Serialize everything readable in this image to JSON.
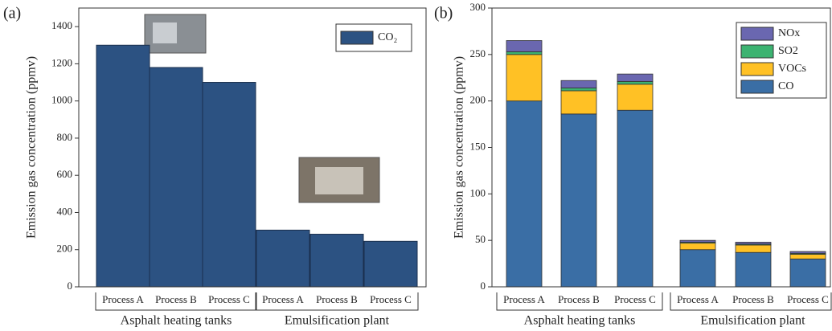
{
  "chart_data": [
    {
      "type": "bar",
      "panel_label": "(a)",
      "ylabel": "Emission gas concentration (ppmv)",
      "categories": [
        "Process A",
        "Process B",
        "Process C",
        "Process A",
        "Process B",
        "Process C"
      ],
      "groups": [
        "Asphalt heating tanks",
        "Emulsification plant"
      ],
      "series": [
        {
          "name": "CO₂",
          "color": "#2c5282",
          "values": [
            1300,
            1180,
            1100,
            305,
            283,
            245
          ]
        }
      ],
      "ylim": [
        0,
        1500
      ],
      "yticks": [
        0,
        200,
        400,
        600,
        800,
        1000,
        1200,
        1400
      ],
      "legend": "upper right"
    },
    {
      "type": "stacked_bar",
      "panel_label": "(b)",
      "ylabel": "Emission gas concentration (ppmv)",
      "categories": [
        "Process A",
        "Process B",
        "Process C",
        "Process A",
        "Process B",
        "Process C"
      ],
      "groups": [
        "Asphalt heating tanks",
        "Emulsification plant"
      ],
      "series": [
        {
          "name": "CO",
          "color": "#3a6ea5",
          "values": [
            200,
            186,
            190,
            40,
            37,
            30
          ]
        },
        {
          "name": "VOCs",
          "color": "#ffc125",
          "values": [
            50,
            25,
            28,
            7,
            8,
            5
          ]
        },
        {
          "name": "SO2",
          "color": "#3cb371",
          "values": [
            3,
            3,
            3,
            1,
            1,
            1
          ]
        },
        {
          "name": "NOx",
          "color": "#6a67b0",
          "values": [
            12,
            8,
            8,
            2,
            2,
            2
          ]
        }
      ],
      "ylim": [
        0,
        300
      ],
      "yticks": [
        0,
        50,
        100,
        150,
        200,
        250,
        300
      ],
      "legend": "upper right"
    }
  ]
}
